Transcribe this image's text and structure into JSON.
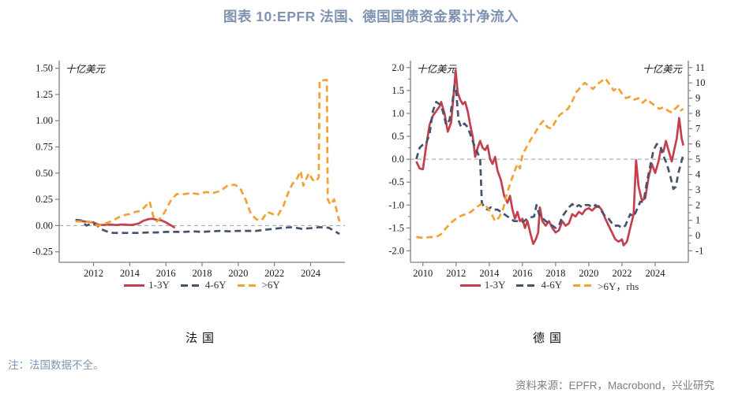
{
  "title": "图表 10:EPFR 法国、德国国债资金累计净流入",
  "note": "注：法国数据不全。",
  "source": "资料来源：EPFR，Macrobond，兴业研究",
  "colors": {
    "red": "#C5404F",
    "blue": "#44546C",
    "yellow": "#F1A237",
    "axis": "#7F7F7F",
    "zero_line": "#9E9E9E",
    "tick_text": "#1A1A1A"
  },
  "chart_data": [
    {
      "type": "line",
      "title": "法国",
      "unit_left": "十亿美元",
      "x_range": [
        2010.1,
        2025.9
      ],
      "x_ticks": [
        2012,
        2014,
        2016,
        2018,
        2020,
        2022,
        2024
      ],
      "x_tick_labels": [
        "2012",
        "2014",
        "2016",
        "2018",
        "2020",
        "2022",
        "2024"
      ],
      "y_left": {
        "range": [
          -0.35,
          1.55
        ],
        "ticks": [
          1.5,
          1.25,
          1.0,
          0.75,
          0.5,
          0.25,
          0.0,
          -0.25
        ],
        "labels": [
          "1.50",
          "1.25",
          "1.00",
          "0.75",
          "0.50",
          "0.25",
          "0.00",
          "-0.25"
        ]
      },
      "zero_line": true,
      "legend_position": "bottom",
      "series": [
        {
          "name": "1-3Y",
          "style": "solid",
          "color_key": "red",
          "axis": "left",
          "x": [
            2011.0,
            2011.25,
            2011.5,
            2011.75,
            2012.0,
            2012.25,
            2012.5,
            2012.75,
            2013.0,
            2013.25,
            2013.5,
            2013.75,
            2014.0,
            2014.25,
            2014.5,
            2014.75,
            2015.0,
            2015.25,
            2015.5,
            2015.75,
            2016.0,
            2016.25,
            2016.5
          ],
          "y": [
            0.05,
            0.045,
            0.04,
            0.035,
            0.03,
            0.01,
            0.005,
            0.01,
            0.01,
            0.005,
            0.01,
            0.01,
            0.005,
            0.01,
            0.02,
            0.045,
            0.06,
            0.065,
            0.055,
            0.05,
            0.03,
            0.005,
            -0.02
          ]
        },
        {
          "name": "4-6Y",
          "style": "dashed",
          "color_key": "blue",
          "axis": "left",
          "x": [
            2011.0,
            2011.3,
            2011.6,
            2011.9,
            2012.2,
            2012.5,
            2012.8,
            2013.1,
            2013.5,
            2014.0,
            2014.5,
            2015.0,
            2015.5,
            2016.0,
            2016.5,
            2017.0,
            2017.5,
            2018.0,
            2018.5,
            2019.0,
            2019.5,
            2020.0,
            2020.5,
            2021.0,
            2021.5,
            2022.0,
            2022.5,
            2023.0,
            2023.5,
            2024.0,
            2024.5,
            2025.0,
            2025.3,
            2025.6
          ],
          "y": [
            0.055,
            0.05,
            0.0,
            0.02,
            0.0,
            -0.04,
            -0.06,
            -0.07,
            -0.07,
            -0.07,
            -0.07,
            -0.065,
            -0.065,
            -0.06,
            -0.06,
            -0.06,
            -0.055,
            -0.06,
            -0.055,
            -0.05,
            -0.055,
            -0.05,
            -0.05,
            -0.05,
            -0.04,
            -0.03,
            -0.02,
            -0.015,
            -0.03,
            -0.025,
            -0.015,
            -0.02,
            -0.05,
            -0.08
          ]
        },
        {
          "name": ">6Y",
          "style": "dashed",
          "color_key": "yellow",
          "axis": "left",
          "x": [
            2011.0,
            2011.3,
            2011.6,
            2011.9,
            2012.2,
            2012.5,
            2012.8,
            2013.1,
            2013.4,
            2013.7,
            2014.0,
            2014.3,
            2014.6,
            2014.9,
            2015.1,
            2015.3,
            2015.5,
            2015.8,
            2016.0,
            2016.3,
            2016.6,
            2017.0,
            2017.4,
            2017.8,
            2018.2,
            2018.6,
            2019.0,
            2019.4,
            2019.8,
            2020.1,
            2020.4,
            2020.7,
            2021.0,
            2021.3,
            2021.6,
            2021.9,
            2022.2,
            2022.5,
            2022.8,
            2023.0,
            2023.2,
            2023.45,
            2023.6,
            2023.9,
            2024.1,
            2024.3,
            2024.45,
            2024.5,
            2024.9,
            2024.95,
            2025.1,
            2025.3,
            2025.5,
            2025.6
          ],
          "y": [
            0.04,
            0.04,
            0.035,
            0.03,
            0.0,
            0.01,
            0.03,
            0.05,
            0.08,
            0.1,
            0.11,
            0.13,
            0.14,
            0.19,
            0.23,
            0.09,
            0.04,
            0.09,
            0.15,
            0.25,
            0.3,
            0.3,
            0.31,
            0.3,
            0.32,
            0.31,
            0.33,
            0.38,
            0.39,
            0.36,
            0.25,
            0.11,
            0.06,
            0.05,
            0.13,
            0.11,
            0.1,
            0.19,
            0.33,
            0.4,
            0.43,
            0.52,
            0.38,
            0.5,
            0.44,
            0.42,
            0.46,
            1.38,
            1.39,
            0.25,
            0.2,
            0.25,
            0.1,
            0.04
          ]
        }
      ]
    },
    {
      "type": "line",
      "title": "德国",
      "unit_left": "十亿美元",
      "unit_right": "十亿美元",
      "x_range": [
        2009.25,
        2026.0
      ],
      "x_ticks": [
        2010,
        2012,
        2014,
        2016,
        2018,
        2020,
        2022,
        2024
      ],
      "x_tick_labels": [
        "2010",
        "2012",
        "2014",
        "2016",
        "2018",
        "2020",
        "2022",
        "2024"
      ],
      "y_left": {
        "range": [
          -2.25,
          2.1
        ],
        "ticks": [
          2.0,
          1.5,
          1.0,
          0.5,
          0.0,
          -0.5,
          -1.0,
          -1.5,
          -2.0
        ],
        "labels": [
          "2.0",
          "1.5",
          "1.0",
          "0.5",
          "0.0",
          "-0.5",
          "-1.0",
          "-1.5",
          "-2.0"
        ],
        "minor_step": 0.25
      },
      "y_right": {
        "ticks": [
          11,
          10,
          9,
          8,
          7,
          6,
          5,
          4,
          3,
          2,
          1,
          0,
          -1
        ],
        "labels": [
          "11",
          "10",
          "9",
          "8",
          "7",
          "6",
          "5",
          "4",
          "3",
          "2",
          "1",
          "0",
          "-1"
        ],
        "map": {
          "scale": 3,
          "offset": 5
        },
        "minor_step": 0.5
      },
      "zero_line": true,
      "legend_position": "bottom",
      "series": [
        {
          "name": "1-3Y",
          "style": "solid",
          "color_key": "red",
          "axis": "left",
          "x": [
            2009.6,
            2009.8,
            2010.0,
            2010.2,
            2010.4,
            2010.6,
            2010.8,
            2011.0,
            2011.1,
            2011.3,
            2011.5,
            2011.7,
            2011.9,
            2011.97,
            2012.1,
            2012.25,
            2012.4,
            2012.55,
            2012.7,
            2012.85,
            2013.0,
            2013.15,
            2013.3,
            2013.45,
            2013.6,
            2013.75,
            2013.9,
            2014.05,
            2014.2,
            2014.35,
            2014.5,
            2014.7,
            2014.9,
            2015.1,
            2015.25,
            2015.4,
            2015.55,
            2015.7,
            2015.85,
            2016.0,
            2016.15,
            2016.3,
            2016.5,
            2016.65,
            2016.8,
            2016.95,
            2017.05,
            2017.2,
            2017.4,
            2017.6,
            2017.8,
            2018.0,
            2018.2,
            2018.4,
            2018.6,
            2018.8,
            2019.0,
            2019.2,
            2019.4,
            2019.6,
            2019.8,
            2020.0,
            2020.2,
            2020.4,
            2020.6,
            2020.8,
            2021.0,
            2021.2,
            2021.4,
            2021.6,
            2021.8,
            2022.0,
            2022.1,
            2022.3,
            2022.5,
            2022.7,
            2022.85,
            2023.0,
            2023.2,
            2023.4,
            2023.6,
            2023.8,
            2024.0,
            2024.2,
            2024.35,
            2024.5,
            2024.65,
            2024.8,
            2025.0,
            2025.15,
            2025.3,
            2025.45,
            2025.6,
            2025.7
          ],
          "y": [
            -0.05,
            -0.2,
            -0.22,
            0.3,
            0.75,
            0.95,
            1.05,
            1.15,
            1.25,
            1.0,
            0.6,
            0.8,
            1.6,
            1.95,
            1.45,
            1.3,
            1.2,
            1.25,
            1.05,
            0.75,
            0.5,
            0.05,
            0.25,
            0.4,
            0.25,
            0.2,
            0.3,
            0.0,
            -0.1,
            0.05,
            -0.25,
            -0.45,
            -0.8,
            -0.95,
            -0.8,
            -1.1,
            -1.3,
            -1.15,
            -1.35,
            -1.3,
            -1.5,
            -1.35,
            -1.65,
            -1.85,
            -1.75,
            -1.6,
            -1.05,
            -1.35,
            -1.45,
            -1.35,
            -1.5,
            -1.6,
            -1.55,
            -1.35,
            -1.45,
            -1.4,
            -1.2,
            -1.25,
            -1.15,
            -1.2,
            -1.1,
            -1.07,
            -1.12,
            -1.05,
            -1.02,
            -1.12,
            -1.3,
            -1.45,
            -1.6,
            -1.75,
            -1.8,
            -1.75,
            -1.88,
            -1.8,
            -1.5,
            -1.2,
            -0.02,
            -0.6,
            -0.9,
            -0.85,
            -0.4,
            -0.1,
            -0.3,
            -0.05,
            0.22,
            0.17,
            0.4,
            0.2,
            -0.05,
            0.2,
            0.45,
            0.9,
            0.45,
            0.3
          ]
        },
        {
          "name": "4-6Y",
          "style": "dashed",
          "color_key": "blue",
          "axis": "left",
          "x": [
            2009.6,
            2009.8,
            2010.0,
            2010.2,
            2010.4,
            2010.6,
            2010.8,
            2011.0,
            2011.2,
            2011.4,
            2011.6,
            2011.8,
            2011.9,
            2012.0,
            2012.15,
            2012.3,
            2012.5,
            2012.7,
            2012.9,
            2013.1,
            2013.3,
            2013.45,
            2013.55,
            2013.7,
            2013.9,
            2014.1,
            2014.3,
            2014.5,
            2014.7,
            2014.9,
            2015.1,
            2015.3,
            2015.5,
            2015.7,
            2015.9,
            2016.1,
            2016.3,
            2016.5,
            2016.7,
            2016.85,
            2017.0,
            2017.2,
            2017.4,
            2017.6,
            2017.8,
            2018.0,
            2018.2,
            2018.4,
            2018.6,
            2018.8,
            2019.0,
            2019.2,
            2019.4,
            2019.6,
            2019.8,
            2020.0,
            2020.2,
            2020.4,
            2020.6,
            2020.8,
            2021.0,
            2021.2,
            2021.5,
            2021.8,
            2022.0,
            2022.2,
            2022.5,
            2022.7,
            2022.9,
            2023.1,
            2023.3,
            2023.5,
            2023.7,
            2023.9,
            2024.1,
            2024.3,
            2024.5,
            2024.7,
            2024.9,
            2025.1,
            2025.25,
            2025.4,
            2025.55,
            2025.7
          ],
          "y": [
            0.0,
            0.25,
            0.32,
            0.35,
            0.55,
            1.05,
            1.25,
            1.2,
            1.05,
            0.75,
            0.85,
            1.3,
            1.6,
            1.5,
            0.85,
            0.7,
            0.78,
            0.7,
            0.5,
            0.3,
            0.14,
            0.0,
            -0.95,
            -1.05,
            -1.1,
            -1.05,
            -1.1,
            -1.1,
            -1.15,
            -1.2,
            -1.25,
            -1.3,
            -1.35,
            -1.35,
            -1.38,
            -1.35,
            -1.3,
            -1.27,
            -1.25,
            -1.0,
            -1.2,
            -1.28,
            -1.35,
            -1.4,
            -1.45,
            -1.5,
            -1.45,
            -1.25,
            -1.15,
            -1.05,
            -0.98,
            -1.05,
            -1.0,
            -1.05,
            -1.0,
            -1.0,
            -1.05,
            -1.0,
            -1.05,
            -1.15,
            -1.25,
            -1.3,
            -1.45,
            -1.45,
            -1.5,
            -1.45,
            -1.2,
            -1.25,
            -1.1,
            -0.93,
            -0.93,
            -0.5,
            -0.15,
            0.2,
            0.33,
            0.3,
            0.07,
            -0.1,
            -0.35,
            -0.65,
            -0.6,
            -0.3,
            -0.1,
            0.1
          ]
        },
        {
          "name": ">6Y，rhs",
          "style": "dashed",
          "color_key": "yellow",
          "axis": "right",
          "x": [
            2009.6,
            2010.0,
            2010.4,
            2010.8,
            2011.1,
            2011.4,
            2011.7,
            2012.0,
            2012.3,
            2012.6,
            2012.9,
            2013.2,
            2013.5,
            2013.8,
            2014.1,
            2014.35,
            2014.6,
            2014.85,
            2015.0,
            2015.2,
            2015.45,
            2015.7,
            2015.85,
            2016.0,
            2016.25,
            2016.5,
            2016.75,
            2017.0,
            2017.25,
            2017.5,
            2017.75,
            2018.0,
            2018.25,
            2018.5,
            2018.75,
            2019.0,
            2019.25,
            2019.5,
            2019.75,
            2020.0,
            2020.25,
            2020.5,
            2020.75,
            2021.0,
            2021.25,
            2021.5,
            2021.75,
            2022.0,
            2022.25,
            2022.5,
            2022.75,
            2023.0,
            2023.25,
            2023.5,
            2023.75,
            2024.0,
            2024.25,
            2024.5,
            2024.75,
            2025.0,
            2025.2,
            2025.4,
            2025.55,
            2025.7
          ],
          "y": [
            -0.1,
            -0.15,
            -0.1,
            -0.1,
            0.1,
            0.5,
            0.85,
            1.1,
            1.3,
            1.4,
            1.55,
            1.85,
            2.05,
            1.95,
            1.5,
            0.95,
            1.2,
            1.8,
            2.5,
            3.2,
            4.0,
            4.7,
            4.4,
            5.3,
            5.8,
            6.3,
            6.7,
            7.2,
            7.5,
            7.1,
            7.0,
            7.5,
            7.9,
            8.1,
            8.3,
            8.8,
            9.4,
            9.7,
            10.0,
            9.8,
            9.6,
            9.9,
            10.1,
            10.3,
            9.9,
            9.5,
            9.7,
            9.3,
            9.0,
            9.1,
            8.9,
            9.0,
            8.7,
            8.95,
            8.7,
            8.5,
            8.3,
            8.4,
            8.2,
            8.05,
            8.3,
            8.5,
            8.2,
            8.3
          ]
        }
      ]
    }
  ]
}
